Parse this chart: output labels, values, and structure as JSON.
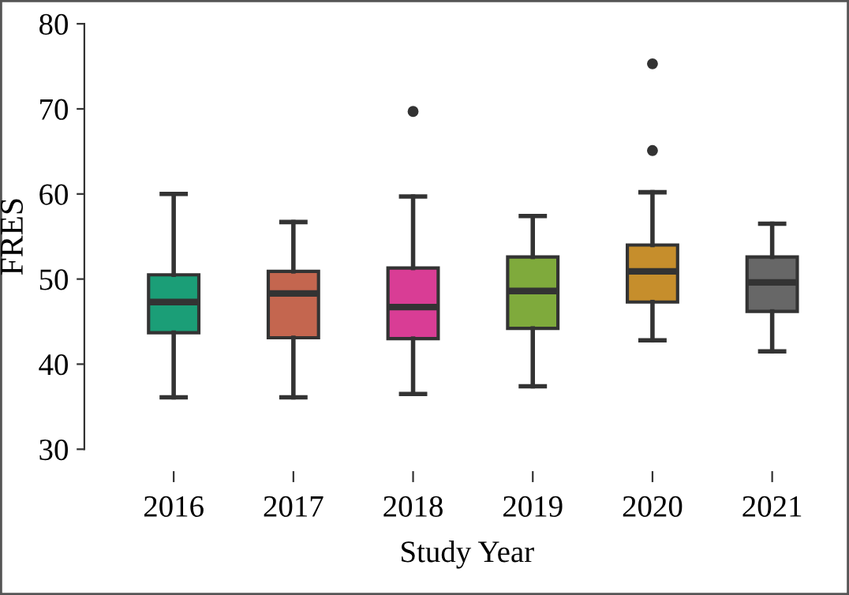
{
  "chart_data": {
    "type": "box",
    "xlabel": "Study Year",
    "ylabel": "FRES",
    "categories": [
      "2016",
      "2017",
      "2018",
      "2019",
      "2020",
      "2021"
    ],
    "colors": [
      "#1b9e77",
      "#c4664f",
      "#d93d95",
      "#7faa3c",
      "#c68e2c",
      "#676767"
    ],
    "boxes": [
      {
        "low": 36.1,
        "q1": 43.7,
        "median": 47.3,
        "q3": 50.5,
        "high": 60.0
      },
      {
        "low": 36.1,
        "q1": 43.1,
        "median": 48.3,
        "q3": 50.9,
        "high": 56.7
      },
      {
        "low": 36.5,
        "q1": 43.0,
        "median": 46.7,
        "q3": 51.3,
        "high": 59.7,
        "outliers": [
          69.7
        ]
      },
      {
        "low": 37.4,
        "q1": 44.2,
        "median": 48.6,
        "q3": 52.6,
        "high": 57.4
      },
      {
        "low": 42.8,
        "q1": 47.3,
        "median": 50.9,
        "q3": 54.0,
        "high": 60.2,
        "outliers": [
          75.3,
          65.1
        ]
      },
      {
        "low": 41.5,
        "q1": 46.2,
        "median": 49.6,
        "q3": 52.6,
        "high": 56.5
      }
    ],
    "ylim": [
      30,
      80
    ],
    "yticks": [
      30,
      40,
      50,
      60,
      70,
      80
    ],
    "grid": false,
    "legend": false
  }
}
